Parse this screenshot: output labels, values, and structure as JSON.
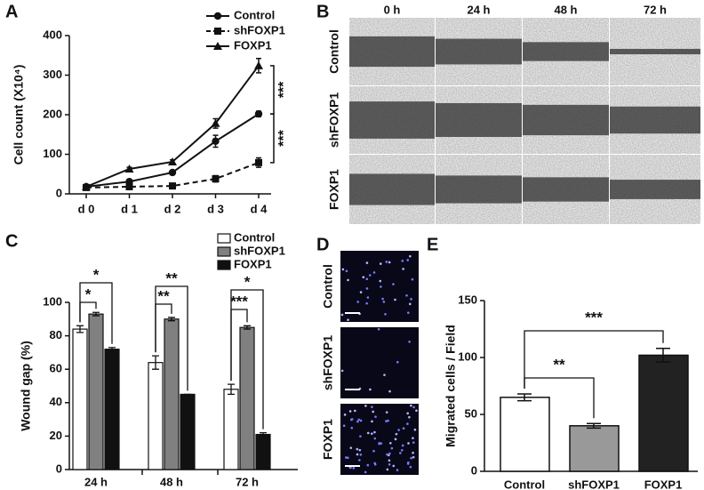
{
  "panels": {
    "labels": [
      "A",
      "B",
      "C",
      "D",
      "E"
    ]
  },
  "wound_images": {
    "columns": [
      "0 h",
      "24 h",
      "48 h",
      "72 h"
    ],
    "rows": [
      "Control",
      "shFOXP1",
      "FOXP1"
    ]
  },
  "migration_images": {
    "rows": [
      "Control",
      "shFOXP1",
      "FOXP1"
    ]
  },
  "chart_data": [
    {
      "type": "line",
      "y_label": "Cell count (X10⁴)",
      "categories": [
        "d 0",
        "d 1",
        "d 2",
        "d 3",
        "d 4"
      ],
      "ylim": [
        0,
        400
      ],
      "yticks": [
        0,
        100,
        200,
        300,
        400
      ],
      "series": [
        {
          "name": "Control",
          "color": "#111111",
          "marker": "circle",
          "linestyle": "solid",
          "values": [
            18,
            31,
            54,
            133,
            202
          ],
          "errors": [
            3,
            5,
            5,
            15,
            7
          ]
        },
        {
          "name": "shFOXP1",
          "color": "#111111",
          "marker": "square",
          "linestyle": "dashed",
          "values": [
            16,
            18,
            20,
            38,
            79
          ],
          "errors": [
            3,
            3,
            6,
            8,
            12
          ]
        },
        {
          "name": "FOXP1",
          "color": "#111111",
          "marker": "triangle",
          "linestyle": "solid",
          "values": [
            18,
            63,
            81,
            178,
            324
          ],
          "errors": [
            3,
            4,
            5,
            12,
            18
          ]
        }
      ],
      "annotations": [
        "***",
        "***"
      ]
    },
    {
      "type": "grouped_bar",
      "y_label": "Wound gap (%)",
      "categories": [
        "24 h",
        "48 h",
        "72 h"
      ],
      "ylim": [
        0,
        100
      ],
      "yticks": [
        0,
        20,
        40,
        60,
        80,
        100
      ],
      "series": [
        {
          "name": "Control",
          "color": "#ffffff",
          "values": [
            84,
            64,
            48
          ],
          "errors": [
            2,
            4,
            3
          ]
        },
        {
          "name": "shFOXP1",
          "color": "#808080",
          "values": [
            93,
            90,
            85
          ],
          "errors": [
            1,
            1,
            1
          ]
        },
        {
          "name": "FOXP1",
          "color": "#111111",
          "values": [
            72,
            45,
            21
          ],
          "errors": [
            1,
            0,
            1
          ]
        }
      ],
      "annotations": [
        "*",
        "*",
        "**",
        "**",
        "*",
        "***"
      ]
    },
    {
      "type": "bar",
      "y_label": "Migrated cells / Field",
      "categories": [
        "Control",
        "shFOXP1",
        "FOXP1"
      ],
      "values": [
        65,
        40,
        102
      ],
      "errors": [
        3,
        2,
        6
      ],
      "colors": [
        "#ffffff",
        "#999999",
        "#222222"
      ],
      "ylim": [
        0,
        150
      ],
      "yticks": [
        0,
        50,
        100,
        150
      ],
      "annotations": [
        "**",
        "***"
      ]
    }
  ]
}
